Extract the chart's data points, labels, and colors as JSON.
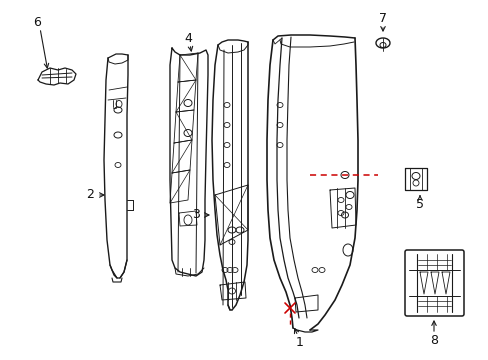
{
  "bg_color": "#ffffff",
  "line_color": "#1a1a1a",
  "red_color": "#cc0000",
  "label_color": "#111111",
  "fig_width": 4.89,
  "fig_height": 3.6,
  "dpi": 100
}
